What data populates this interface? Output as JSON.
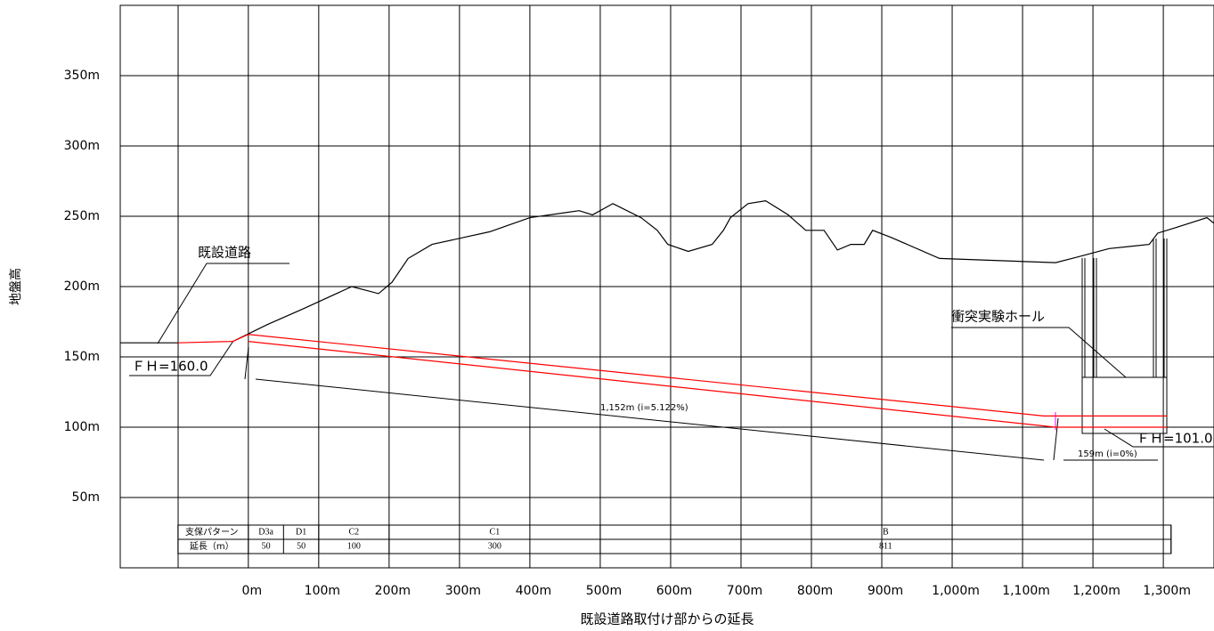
{
  "chart_data": {
    "type": "line",
    "y_label": "地盤高",
    "x_label": "既設道路取付け部からの延長",
    "xlim": [
      -182,
      1372
    ],
    "ylim": [
      0,
      400
    ],
    "xticks": [
      {
        "value": 0,
        "label": "0m"
      },
      {
        "value": 100,
        "label": "100m"
      },
      {
        "value": 200,
        "label": "200m"
      },
      {
        "value": 300,
        "label": "300m"
      },
      {
        "value": 400,
        "label": "400m"
      },
      {
        "value": 500,
        "label": "500m"
      },
      {
        "value": 600,
        "label": "600m"
      },
      {
        "value": 700,
        "label": "700m"
      },
      {
        "value": 800,
        "label": "800m"
      },
      {
        "value": 900,
        "label": "900m"
      },
      {
        "value": 1000,
        "label": "1,000m"
      },
      {
        "value": 1100,
        "label": "1,100m"
      },
      {
        "value": 1200,
        "label": "1,200m"
      },
      {
        "value": 1300,
        "label": "1,300m"
      }
    ],
    "yticks": [
      {
        "value": 50,
        "label": "50m"
      },
      {
        "value": 100,
        "label": "100m"
      },
      {
        "value": 150,
        "label": "150m"
      },
      {
        "value": 200,
        "label": "200m"
      },
      {
        "value": 250,
        "label": "250m"
      },
      {
        "value": 300,
        "label": "300m"
      },
      {
        "value": 350,
        "label": "350m"
      }
    ],
    "grid": true,
    "series": [
      {
        "color": "#000000",
        "x": [
          -22,
          27,
          77,
          147,
          185,
          204,
          227,
          261,
          343,
          400,
          470,
          489,
          518,
          558,
          581,
          596,
          625,
          659,
          675,
          685,
          710,
          735,
          767,
          792,
          818,
          837,
          856,
          875,
          887,
          913,
          982,
          1147,
          1178,
          1223,
          1280,
          1292,
          1318,
          1362,
          1372
        ],
        "values": [
          161,
          173,
          184,
          200,
          195,
          203,
          220,
          230,
          239,
          249,
          254,
          251,
          259,
          249,
          240,
          230,
          225,
          230,
          240,
          249,
          259,
          261,
          251,
          240,
          240,
          226,
          230,
          230,
          240,
          235,
          220,
          217,
          221,
          227,
          230,
          238,
          242,
          249,
          245
        ]
      },
      {
        "color": "#000000",
        "x": [
          -182,
          -100
        ],
        "values": [
          160,
          160
        ]
      },
      {
        "color": "#ff0000",
        "x": [
          -100,
          -22,
          0,
          1130,
          1305
        ],
        "values": [
          160,
          161,
          166,
          108,
          108
        ]
      },
      {
        "color": "#ff0000",
        "x": [
          0,
          1147,
          1305
        ],
        "values": [
          161,
          100,
          100
        ]
      }
    ],
    "annotations": {
      "road": "既設道路",
      "fh_start": "ＦＨ=160.0",
      "hall": "衝突実験ホール",
      "fh_end": "ＦＨ=101.0",
      "grade_main": "1,152m (i=5.122%)",
      "grade_hall": "159m (i=0%)"
    },
    "support_table": {
      "row_labels": [
        "支保パターン",
        "延長（m）"
      ],
      "patterns": [
        "D3a",
        "D1",
        "C2",
        "C1",
        "B"
      ],
      "lengths": [
        50,
        50,
        100,
        300,
        811
      ]
    }
  }
}
